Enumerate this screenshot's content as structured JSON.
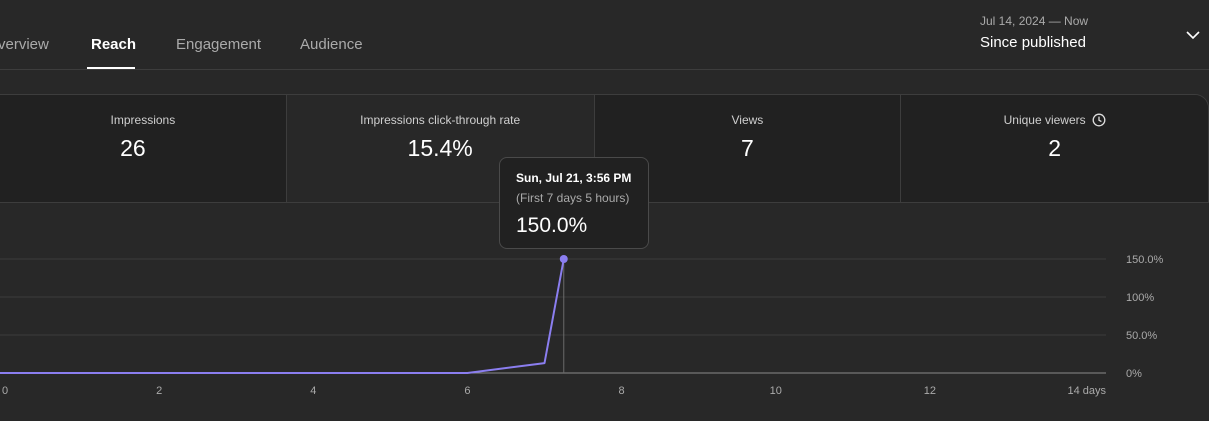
{
  "tabs": [
    {
      "label": "Overview",
      "visible_label": "verview"
    },
    {
      "label": "Reach",
      "active": true
    },
    {
      "label": "Engagement"
    },
    {
      "label": "Audience"
    }
  ],
  "date_range": {
    "sub": "Jul 14, 2024 — Now",
    "main": "Since published"
  },
  "metrics": [
    {
      "label": "Impressions",
      "value": "26"
    },
    {
      "label": "Impressions click-through rate",
      "value": "15.4%",
      "selected": true
    },
    {
      "label": "Views",
      "value": "7"
    },
    {
      "label": "Unique viewers",
      "value": "2",
      "info_icon": "clock-icon"
    }
  ],
  "tooltip": {
    "date": "Sun, Jul 21, 3:56 PM",
    "sub": "(First 7 days 5 hours)",
    "value": "150.0%"
  },
  "colors": {
    "background": "#282828",
    "card": "#212121",
    "line": "#8b7ef0",
    "grid": "#3d3d3d",
    "muted_text": "#aaaaaa"
  },
  "chart_data": {
    "type": "line",
    "x_unit": "days",
    "x": [
      0,
      6,
      7,
      7.25
    ],
    "y": [
      0,
      0,
      13,
      150
    ],
    "xlim": [
      0,
      14
    ],
    "ylim": [
      0,
      150
    ],
    "x_ticks": [
      "0",
      "2",
      "4",
      "6",
      "8",
      "10",
      "12",
      "14 days"
    ],
    "y_ticks": [
      "0%",
      "50.0%",
      "100%",
      "150.0%"
    ],
    "y_tick_values": [
      0,
      50,
      100,
      150
    ],
    "highlight_x": 7.25,
    "highlight_y": 150,
    "grid": true
  }
}
